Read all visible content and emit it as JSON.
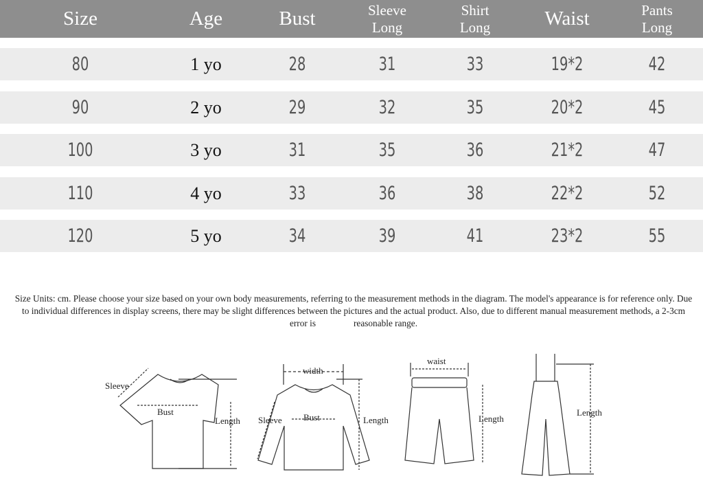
{
  "table": {
    "headers": [
      {
        "line1": "Size",
        "line2": ""
      },
      {
        "line1": "Age",
        "line2": ""
      },
      {
        "line1": "Bust",
        "line2": ""
      },
      {
        "line1": "Sleeve",
        "line2": "Long"
      },
      {
        "line1": "Shirt",
        "line2": "Long"
      },
      {
        "line1": "Waist",
        "line2": ""
      },
      {
        "line1": "Pants",
        "line2": "Long"
      }
    ],
    "rows": [
      [
        "80",
        "1 yo",
        "28",
        "31",
        "33",
        "19*2",
        "42"
      ],
      [
        "90",
        "2 yo",
        "29",
        "32",
        "35",
        "20*2",
        "45"
      ],
      [
        "100",
        "3 yo",
        "31",
        "35",
        "36",
        "21*2",
        "47"
      ],
      [
        "110",
        "4 yo",
        "33",
        "36",
        "38",
        "22*2",
        "52"
      ],
      [
        "120",
        "5 yo",
        "34",
        "39",
        "41",
        "23*2",
        "55"
      ]
    ]
  },
  "note": {
    "part1": "Size Units: cm. Please choose your size based on your own body measurements, referring to the measurement methods in the diagram. The model's appearance is for reference only. Due to individual differences in display screens, there may be slight differences between the pictures and the actual product. Also, due to different manual measurement methods, a 2-3cm error is",
    "part2": "reasonable range."
  },
  "diagrams": {
    "tshirt": {
      "sleeve": "Sleeve",
      "bust": "Bust",
      "length": "Length"
    },
    "sweater": {
      "width": "width",
      "sleeve": "Sleeve",
      "bust": "Bust",
      "length": "Length"
    },
    "shorts": {
      "waist": "waist",
      "length": "Length"
    },
    "overalls": {
      "length": "Length"
    }
  },
  "colors": {
    "header_bg": "#8e8e8e",
    "row_bg": "#ececec"
  }
}
